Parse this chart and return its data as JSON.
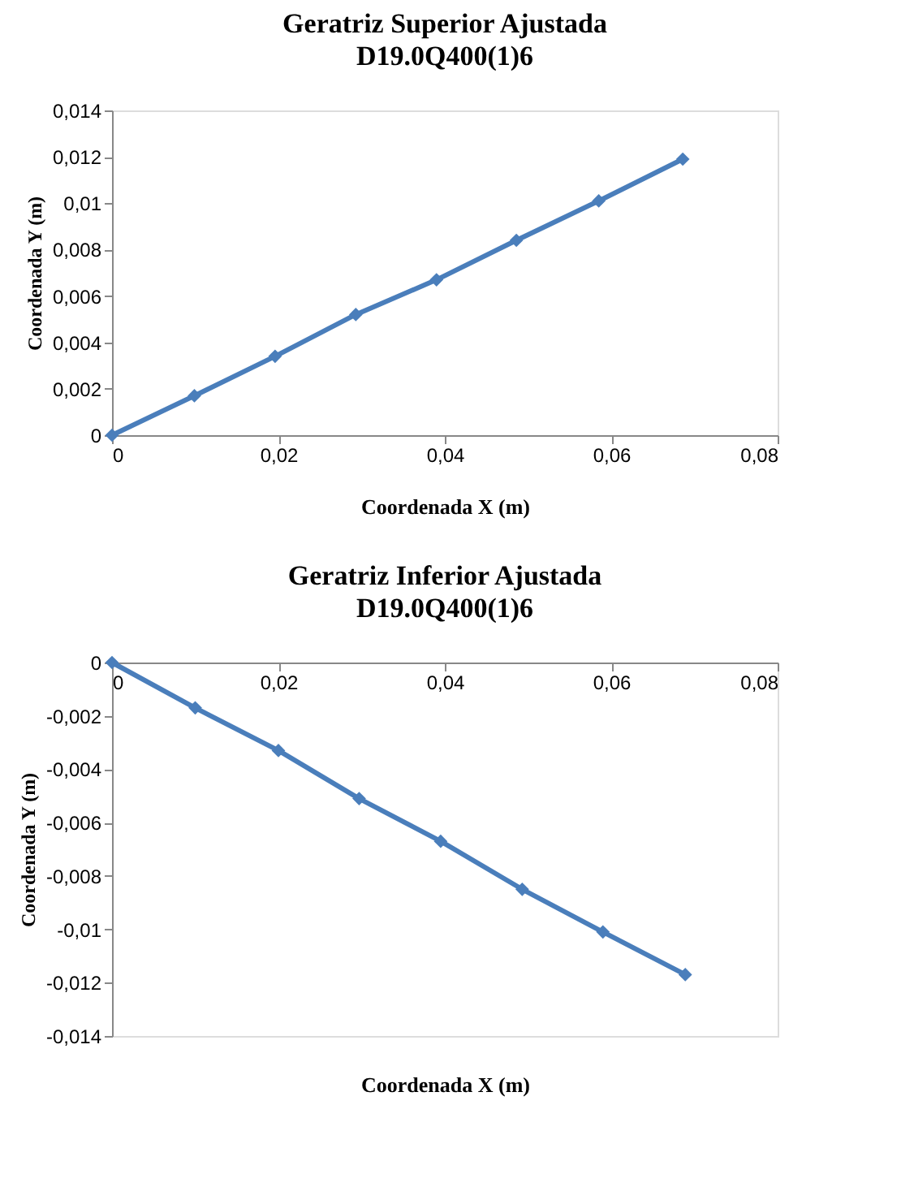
{
  "chart_data": [
    {
      "type": "line",
      "title": "Geratriz  Superior Ajustada",
      "subtitle": "D19.0Q400(1)6",
      "xlabel": "Coordenada  X (m)",
      "ylabel": "Coordenada Y (m)",
      "marker": "diamond",
      "line_style": "solid",
      "grid": false,
      "x": [
        0,
        0.0099,
        0.0196,
        0.0293,
        0.039,
        0.0486,
        0.0585,
        0.0686
      ],
      "series": [
        {
          "color": "#4a7ebb",
          "values": [
            0,
            0.0017,
            0.0034,
            0.0052,
            0.0067,
            0.0084,
            0.0101,
            0.0119
          ]
        }
      ],
      "xlim": [
        0,
        0.08
      ],
      "xticks": [
        0,
        {
          "value": 0.02,
          "label": "0,02"
        },
        {
          "value": 0.04,
          "label": "0,04"
        },
        {
          "value": 0.06,
          "label": "0,06"
        },
        {
          "value": 0.08,
          "label": "0,08"
        }
      ],
      "ylim": [
        0,
        0.014
      ],
      "yticks": [
        0,
        {
          "value": 0.002,
          "label": "0,002"
        },
        {
          "value": 0.004,
          "label": "0,004"
        },
        {
          "value": 0.006,
          "label": "0,006"
        },
        {
          "value": 0.008,
          "label": "0,008"
        },
        {
          "value": 0.01,
          "label": "0,01"
        },
        {
          "value": 0.012,
          "label": "0,012"
        },
        {
          "value": 0.014,
          "label": "0,014"
        }
      ]
    },
    {
      "type": "line",
      "title": "Geratriz  Inferior Ajustada",
      "subtitle": "D19.0Q400(1)6",
      "xlabel": "Coordenada  X (m)",
      "ylabel": "Coordenada Y (m)",
      "marker": "diamond",
      "line_style": "solid",
      "grid": false,
      "x": [
        0,
        0.01,
        0.02,
        0.0297,
        0.0395,
        0.0493,
        0.059,
        0.0689
      ],
      "series": [
        {
          "color": "#4a7ebb",
          "values": [
            0,
            -0.0017,
            -0.0033,
            -0.0051,
            -0.0067,
            -0.0085,
            -0.0101,
            -0.0117
          ]
        }
      ],
      "xlim": [
        0,
        0.08
      ],
      "xticks": [
        0,
        {
          "value": 0.02,
          "label": "0,02"
        },
        {
          "value": 0.04,
          "label": "0,04"
        },
        {
          "value": 0.06,
          "label": "0,06"
        },
        {
          "value": 0.08,
          "label": "0,08"
        }
      ],
      "ylim": [
        -0.014,
        0
      ],
      "yticks": [
        0,
        {
          "value": -0.002,
          "label": "-0,002"
        },
        {
          "value": -0.004,
          "label": "-0,004"
        },
        {
          "value": -0.006,
          "label": "-0,006"
        },
        {
          "value": -0.008,
          "label": "-0,008"
        },
        {
          "value": -0.01,
          "label": "-0,01"
        },
        {
          "value": -0.012,
          "label": "-0,012"
        },
        {
          "value": -0.014,
          "label": "-0,014"
        }
      ]
    }
  ]
}
